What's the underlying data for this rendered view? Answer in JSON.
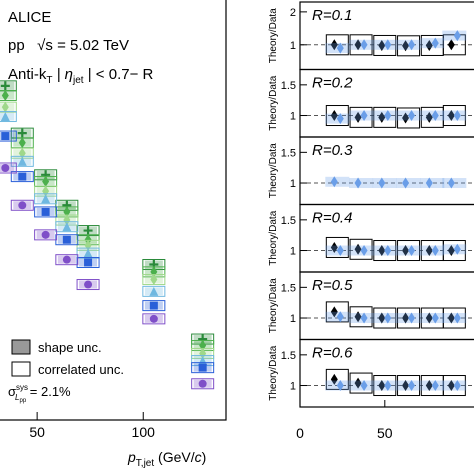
{
  "chart_data": [
    {
      "type": "scatter",
      "experiment": "ALICE",
      "system": "pp   √s = 5.02 TeV",
      "selection": [
        "Anti-k",
        "T",
        " | η",
        "jet",
        " | < 0.7− R"
      ],
      "legend": {
        "shape": "shape unc.",
        "correlated": "correlated unc.",
        "lumi": [
          "σ",
          "sys",
          "L",
          "pp",
          " = 2.1%"
        ]
      },
      "x_label": [
        "p",
        "T,jet",
        " (GeV/",
        "c",
        ")"
      ],
      "log_y": true,
      "xlim": [
        32.5,
        139
      ],
      "xticks": [
        50,
        100
      ],
      "ylim": [
        1e-05,
        1
      ],
      "x": [
        35,
        43,
        54,
        64,
        74,
        105,
        128
      ],
      "series": [
        {
          "color": "#2a8a3a",
          "marker": "plus",
          "values": [
            0.095,
            0.026,
            0.0083,
            0.0036,
            0.0018,
            0.00071,
            9.2e-05
          ]
        },
        {
          "color": "#4cb04c",
          "marker": "diamond",
          "values": [
            0.073,
            0.02,
            0.0069,
            0.003,
            0.0014,
            0.00058,
            7.7e-05
          ]
        },
        {
          "color": "#9fd88a",
          "marker": "diamond",
          "values": [
            0.053,
            0.015,
            0.0053,
            0.0024,
            0.0012,
            0.00047,
            6.2e-05
          ]
        },
        {
          "color": "#6fb8e0",
          "marker": "triangle",
          "values": [
            0.041,
            0.012,
            0.0043,
            0.002,
            0.00097,
            0.00034,
            5.1e-05
          ]
        },
        {
          "color": "#2a5fd8",
          "marker": "square",
          "values": [
            0.024,
            0.0079,
            0.003,
            0.0014,
            0.00075,
            0.00023,
            4.2e-05
          ]
        },
        {
          "color": "#7f4fc8",
          "marker": "circle",
          "values": [
            0.01,
            0.0036,
            0.0016,
            0.00081,
            0.00041,
            0.00016,
            2.7e-05
          ]
        }
      ]
    },
    {
      "type": "ratio",
      "label": "R=0.1",
      "y_label": "Theory/Data",
      "xlim": [
        0,
        102
      ],
      "ylim": [
        0.25,
        2.3
      ],
      "yticks": [
        1,
        2
      ],
      "ref_line": 1,
      "x": [
        22,
        36,
        50,
        64,
        78,
        91
      ],
      "series": [
        {
          "color": "#000000",
          "values": [
            1.0,
            1.0,
            0.98,
            0.97,
            0.98,
            1.0
          ]
        },
        {
          "color": "#6a9ee8",
          "values": [
            0.9,
            1.0,
            1.0,
            1.0,
            1.05,
            1.28
          ]
        }
      ]
    },
    {
      "type": "ratio",
      "label": "R=0.2",
      "y_label": "Theory/Data",
      "xlim": [
        0,
        102
      ],
      "ylim": [
        0.65,
        1.75
      ],
      "yticks": [
        1,
        1.5
      ],
      "ref_line": 1,
      "x": [
        22,
        36,
        50,
        64,
        78,
        91
      ],
      "series": [
        {
          "color": "#000000",
          "values": [
            1.0,
            0.97,
            0.97,
            0.96,
            0.97,
            1.0
          ]
        },
        {
          "color": "#6a9ee8",
          "values": [
            0.95,
            1.0,
            1.0,
            1.0,
            1.0,
            1.0
          ]
        }
      ]
    },
    {
      "type": "ratio",
      "label": "R=0.3",
      "y_label": "Theory/Data",
      "xlim": [
        0,
        102
      ],
      "ylim": [
        0.65,
        1.75
      ],
      "yticks": [
        1,
        1.5
      ],
      "ref_line": 1,
      "x": [
        22,
        36,
        50,
        64,
        78,
        91
      ],
      "series": [
        {
          "color": "#6a9ee8",
          "values": [
            1.02,
            1.0,
            1.0,
            1.0,
            1.0,
            1.0
          ]
        }
      ]
    },
    {
      "type": "ratio",
      "label": "R=0.4",
      "y_label": "Theory/Data",
      "xlim": [
        0,
        102
      ],
      "ylim": [
        0.65,
        1.75
      ],
      "yticks": [
        1,
        1.5
      ],
      "ref_line": 1,
      "x": [
        22,
        36,
        50,
        64,
        78,
        91
      ],
      "series": [
        {
          "color": "#000000",
          "values": [
            1.05,
            1.02,
            1.0,
            1.0,
            1.0,
            1.0
          ]
        },
        {
          "color": "#6a9ee8",
          "values": [
            1.0,
            1.0,
            1.0,
            1.0,
            1.0,
            1.02
          ]
        }
      ]
    },
    {
      "type": "ratio",
      "label": "R=0.5",
      "y_label": "Theory/Data",
      "xlim": [
        0,
        102
      ],
      "ylim": [
        0.65,
        1.75
      ],
      "yticks": [
        1,
        1.5
      ],
      "ref_line": 1,
      "x": [
        22,
        36,
        50,
        64,
        78,
        91
      ],
      "series": [
        {
          "color": "#000000",
          "values": [
            1.1,
            1.02,
            1.0,
            1.0,
            1.0,
            1.0
          ]
        },
        {
          "color": "#6a9ee8",
          "values": [
            1.02,
            1.0,
            1.0,
            1.0,
            1.0,
            1.0
          ]
        }
      ]
    },
    {
      "type": "ratio",
      "label": "R=0.6",
      "y_label": "Theory/Data",
      "xlim": [
        0,
        102
      ],
      "ylim": [
        0.65,
        1.75
      ],
      "yticks": [
        1,
        1.5
      ],
      "ref_line": 1,
      "x": [
        22,
        36,
        50,
        64,
        78,
        91
      ],
      "xticks": [
        0,
        50
      ],
      "series": [
        {
          "color": "#000000",
          "values": [
            1.1,
            1.04,
            1.0,
            1.0,
            1.0,
            1.0
          ]
        },
        {
          "color": "#6a9ee8",
          "values": [
            1.0,
            1.0,
            1.0,
            1.0,
            1.0,
            1.0
          ]
        }
      ]
    }
  ]
}
